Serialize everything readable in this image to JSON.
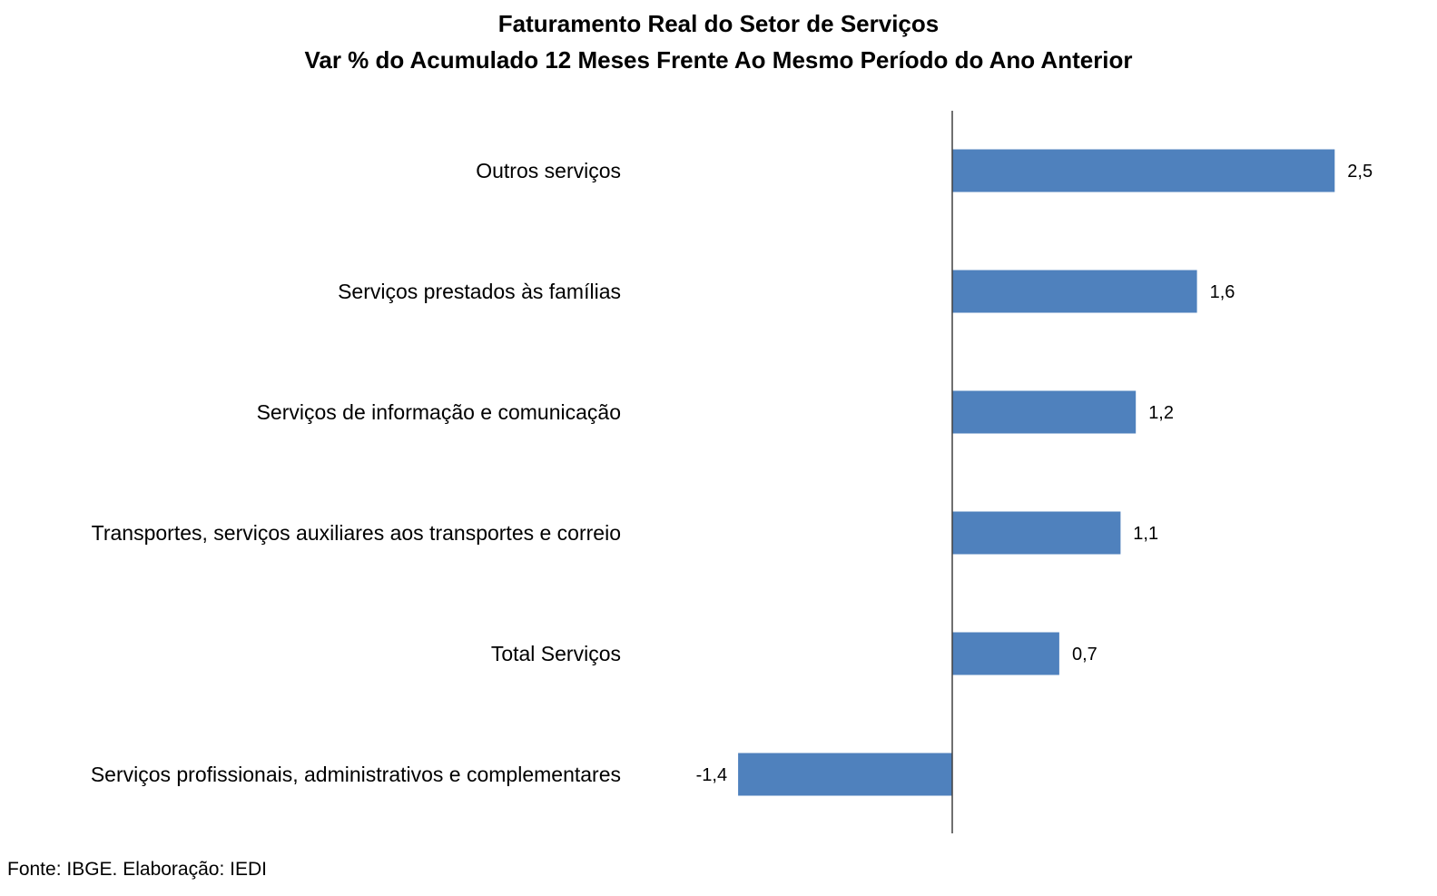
{
  "chart_data": {
    "type": "bar",
    "orientation": "horizontal",
    "title": "Faturamento Real do Setor de Serviços",
    "subtitle": "Var % do Acumulado 12 Meses Frente Ao Mesmo Período do Ano Anterior",
    "categories": [
      "Outros serviços",
      "Serviços prestados às famílias",
      "Serviços de informação e comunicação",
      "Transportes, serviços auxiliares aos transportes e correio",
      "Total Serviços",
      "Serviços profissionais, administrativos e complementares"
    ],
    "values": [
      2.5,
      1.6,
      1.2,
      1.1,
      0.7,
      -1.4
    ],
    "value_labels": [
      "2,5",
      "1,6",
      "1,2",
      "1,1",
      "0,7",
      "-1,4"
    ],
    "xlim": [
      -1.4,
      2.5
    ],
    "grid": false,
    "legend": "none",
    "bar_color": "#4F81BD",
    "axis_color": "#404040"
  },
  "source_note": "Fonte: IBGE. Elaboração: IEDI"
}
